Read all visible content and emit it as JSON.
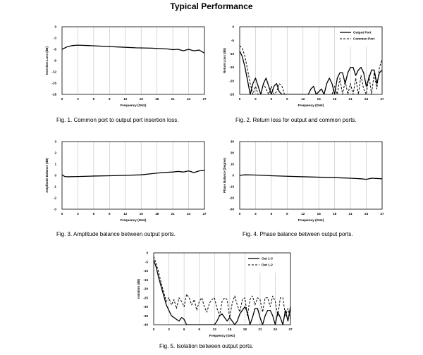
{
  "page_title": "Typical Performance",
  "chart_data": [
    {
      "type": "line",
      "caption": "Fig. 1.  Common port to output port insertion loss.",
      "xlabel": "Frequency (GHz)",
      "ylabel": "Insertion Loss (dB)",
      "xlim": [
        0,
        27
      ],
      "ylim": [
        -18,
        0
      ],
      "xticks": [
        0,
        3,
        6,
        9,
        12,
        15,
        18,
        21,
        24,
        27
      ],
      "yticks": [
        0,
        -3,
        -6,
        -9,
        -12,
        -15,
        -18
      ],
      "grid": "vertical",
      "legend": "none",
      "series": [
        {
          "style": "solid",
          "x": [
            0,
            1,
            2,
            3,
            5,
            8,
            11,
            14,
            17,
            20,
            21,
            22,
            23,
            24,
            25,
            26,
            27
          ],
          "y": [
            -6.0,
            -5.3,
            -5.0,
            -4.9,
            -5.0,
            -5.2,
            -5.4,
            -5.6,
            -5.7,
            -5.9,
            -6.1,
            -6.0,
            -6.4,
            -6.0,
            -6.4,
            -6.2,
            -7.0
          ]
        }
      ]
    },
    {
      "type": "line",
      "caption": "Fig. 2.  Return loss for output and common ports.",
      "xlabel": "Frequency (GHz)",
      "ylabel": "Return Loss (dB)",
      "xlim": [
        0,
        27
      ],
      "ylim": [
        -25,
        0
      ],
      "xticks": [
        0,
        3,
        6,
        9,
        12,
        15,
        18,
        21,
        24,
        27
      ],
      "yticks": [
        0,
        -5,
        -10,
        -15,
        -20,
        -25
      ],
      "grid": "vertical",
      "legend": "top-right",
      "series": [
        {
          "name": "Output Port",
          "style": "solid",
          "x": [
            0,
            0.5,
            1,
            1.5,
            2,
            2.5,
            3,
            3.5,
            4,
            4.5,
            5,
            5.5,
            6,
            6.5,
            7,
            7.5,
            8,
            8.5,
            9,
            9.5,
            10,
            10.5,
            11,
            11.5,
            12,
            12.5,
            13,
            13.5,
            14,
            14.5,
            15,
            15.5,
            16,
            16.5,
            17,
            17.5,
            18,
            18.5,
            19,
            19.5,
            20,
            20.5,
            21,
            21.5,
            22,
            22.5,
            23,
            23.5,
            24,
            24.5,
            25,
            25.5,
            26,
            26.5,
            27
          ],
          "y": [
            -9,
            -11,
            -15,
            -20,
            -25,
            -21,
            -19,
            -22,
            -25,
            -21,
            -19,
            -22,
            -25,
            -22,
            -21,
            -24,
            -25,
            -25,
            -25,
            -25,
            -25,
            -25,
            -25,
            -25,
            -25,
            -25,
            -25,
            -23,
            -22,
            -25,
            -24,
            -23,
            -25,
            -21,
            -19,
            -21,
            -25,
            -19,
            -17,
            -17,
            -21,
            -17,
            -15,
            -15,
            -18,
            -16,
            -15,
            -17,
            -22,
            -19,
            -16,
            -16,
            -21,
            -17,
            -16
          ]
        },
        {
          "name": "Common Port",
          "style": "dashed",
          "x": [
            0,
            0.5,
            1,
            1.5,
            2,
            2.5,
            3,
            3.5,
            4,
            4.5,
            5,
            5.5,
            6,
            6.5,
            7,
            7.5,
            8,
            8.5,
            9,
            9.5,
            10,
            10.5,
            11,
            11.5,
            12,
            12.5,
            13,
            13.5,
            14,
            14.5,
            15,
            15.5,
            16,
            16.5,
            17,
            17.5,
            18,
            18.5,
            19,
            19.5,
            20,
            20.5,
            21,
            21.5,
            22,
            22.5,
            23,
            23.5,
            24,
            24.5,
            25,
            25.5,
            26,
            26.5,
            27
          ],
          "y": [
            -7,
            -8,
            -11,
            -16,
            -21,
            -25,
            -22,
            -25,
            -25,
            -21,
            -23,
            -25,
            -22,
            -25,
            -24,
            -21,
            -22,
            -25,
            -25,
            -25,
            -25,
            -25,
            -25,
            -25,
            -25,
            -25,
            -25,
            -25,
            -25,
            -25,
            -25,
            -25,
            -25,
            -25,
            -25,
            -25,
            -22,
            -25,
            -19,
            -25,
            -20,
            -25,
            -21,
            -25,
            -19,
            -25,
            -18,
            -23,
            -25,
            -18,
            -25,
            -17,
            -23,
            -15,
            -12
          ]
        }
      ]
    },
    {
      "type": "line",
      "caption": "Fig. 3.  Amplitude balance between output ports.",
      "xlabel": "Frequency (GHz)",
      "ylabel": "Amplitude Balance (dB)",
      "xlim": [
        0,
        27
      ],
      "ylim": [
        -3,
        3
      ],
      "xticks": [
        0,
        3,
        6,
        9,
        12,
        15,
        18,
        21,
        24,
        27
      ],
      "yticks": [
        3,
        2,
        1,
        0,
        -1,
        -2,
        -3
      ],
      "grid": "vertical",
      "legend": "none",
      "series": [
        {
          "style": "solid",
          "x": [
            0,
            0.5,
            1,
            3,
            6,
            9,
            12,
            15,
            17,
            19,
            21,
            22,
            23,
            24,
            25,
            26,
            27
          ],
          "y": [
            0.05,
            -0.1,
            -0.12,
            -0.1,
            -0.06,
            -0.03,
            0,
            0.05,
            0.15,
            0.25,
            0.3,
            0.35,
            0.3,
            0.4,
            0.25,
            0.4,
            0.45
          ]
        }
      ]
    },
    {
      "type": "line",
      "caption": "Fig. 4.  Phase balance between output ports.",
      "xlabel": "Frequency (GHz)",
      "ylabel": "Phase Balance (Degree)",
      "xlim": [
        0,
        27
      ],
      "ylim": [
        -30,
        30
      ],
      "xticks": [
        0,
        3,
        6,
        9,
        12,
        15,
        18,
        21,
        24,
        27
      ],
      "yticks": [
        30,
        20,
        10,
        0,
        -10,
        -20,
        -30
      ],
      "grid": "vertical",
      "legend": "none",
      "series": [
        {
          "style": "solid",
          "x": [
            0,
            1,
            3,
            6,
            9,
            12,
            15,
            18,
            21,
            23,
            24,
            25,
            27
          ],
          "y": [
            0,
            0.5,
            0.3,
            -0.3,
            -0.8,
            -1.2,
            -1.6,
            -2.0,
            -2.5,
            -3,
            -3.5,
            -2.5,
            -3
          ]
        }
      ]
    },
    {
      "type": "line",
      "caption": "Fig. 5.  Isolation between output ports.",
      "xlabel": "Frequency (GHz)",
      "ylabel": "Isolation (dB)",
      "xlim": [
        0,
        27
      ],
      "ylim": [
        -40,
        0
      ],
      "xticks": [
        0,
        3,
        6,
        9,
        12,
        15,
        18,
        21,
        24,
        27
      ],
      "yticks": [
        0,
        -5,
        -10,
        -15,
        -20,
        -25,
        -30,
        -35,
        -40
      ],
      "grid": "vertical",
      "legend": "top-right",
      "series": [
        {
          "name": "Out 1-3",
          "style": "solid",
          "x": [
            0,
            0.5,
            1,
            1.5,
            2,
            2.5,
            3,
            3.5,
            4,
            4.5,
            5,
            5.5,
            6,
            6.5,
            7,
            8,
            9,
            10,
            11,
            12,
            12.5,
            13,
            13.5,
            14,
            14.5,
            15,
            15.5,
            16,
            16.5,
            17,
            17.5,
            18,
            18.5,
            19,
            19.5,
            20,
            20.5,
            21,
            21.5,
            22,
            22.5,
            23,
            23.5,
            24,
            24.5,
            25,
            25.5,
            26,
            26.5,
            27
          ],
          "y": [
            -4,
            -8,
            -14,
            -19,
            -24,
            -29,
            -32,
            -35,
            -36,
            -37,
            -38,
            -36,
            -37,
            -40,
            -40,
            -40,
            -40,
            -40,
            -40,
            -40,
            -38,
            -35,
            -34,
            -36,
            -38,
            -36,
            -38,
            -40,
            -38,
            -34,
            -32,
            -30,
            -33,
            -40,
            -36,
            -31,
            -31,
            -36,
            -40,
            -35,
            -32,
            -32,
            -35,
            -40,
            -33,
            -36,
            -40,
            -32,
            -38,
            -30
          ]
        },
        {
          "name": "Out 1-2",
          "style": "dashed",
          "x": [
            0,
            0.5,
            1,
            1.5,
            2,
            2.5,
            3,
            3.5,
            4,
            4.5,
            5,
            5.5,
            6,
            6.5,
            7,
            7.5,
            8,
            8.5,
            9,
            9.5,
            10,
            10.5,
            11,
            11.5,
            12,
            12.5,
            13,
            13.5,
            14,
            14.5,
            15,
            15.5,
            16,
            16.5,
            17,
            17.5,
            18,
            18.5,
            19,
            19.5,
            20,
            20.5,
            21,
            21.5,
            22,
            22.5,
            23,
            23.5,
            24,
            24.5,
            25,
            25.5,
            26,
            26.5,
            27
          ],
          "y": [
            -2,
            -6,
            -11,
            -17,
            -22,
            -27,
            -25,
            -29,
            -26,
            -31,
            -25,
            -27,
            -30,
            -23,
            -25,
            -29,
            -26,
            -32,
            -27,
            -25,
            -30,
            -33,
            -28,
            -26,
            -25,
            -31,
            -35,
            -27,
            -25,
            -26,
            -36,
            -28,
            -24,
            -29,
            -33,
            -26,
            -25,
            -35,
            -26,
            -24,
            -29,
            -25,
            -26,
            -33,
            -25,
            -25,
            -30,
            -24,
            -27,
            -35,
            -25,
            -25,
            -35,
            -31,
            -37
          ]
        }
      ]
    }
  ]
}
